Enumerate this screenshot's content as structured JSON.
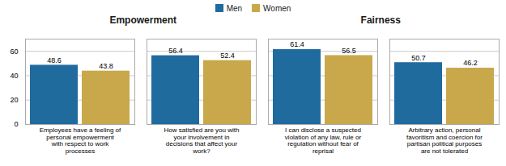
{
  "chart_data": {
    "type": "bar",
    "categories": [
      "Employees have a feeling of\npersonal empowerment\nwith respect to work\nprocesses",
      "How satisfied are you with\nyour involvement in\ndecisions that affect your\nwork?",
      "I can disclose a suspected\nviolation of any law, rule or\nregulation without fear of\nreprisal",
      "Arbitrary action, personal\nfavoritism and coercion for\npartisan political purposes\nare not tolerated"
    ],
    "series": [
      {
        "name": "Men",
        "color": "#1f6b9e",
        "values": [
          48.6,
          56.4,
          61.4,
          50.7
        ]
      },
      {
        "name": "Women",
        "color": "#c8a84b",
        "values": [
          43.8,
          52.4,
          56.5,
          46.2
        ]
      }
    ],
    "ylim": [
      0,
      70
    ],
    "yticks": [
      0,
      20,
      40,
      60
    ],
    "grid": true,
    "legend": "top",
    "data_labels": true,
    "annotations": [
      "Empowerment",
      "Fairness"
    ]
  }
}
